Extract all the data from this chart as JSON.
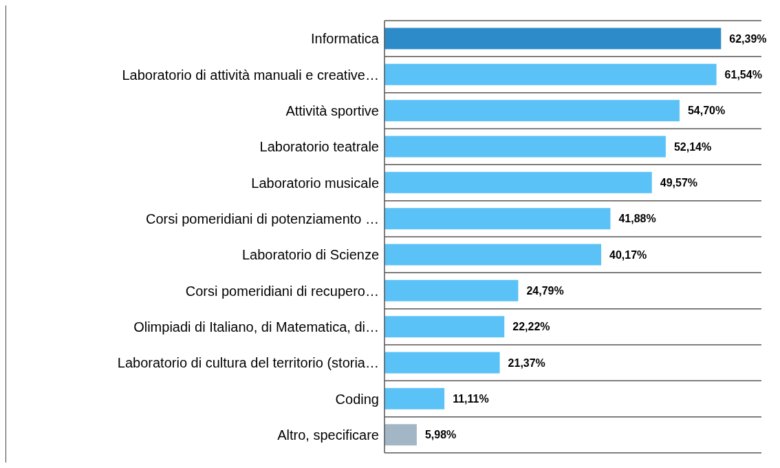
{
  "chart_data": {
    "type": "bar",
    "orientation": "horizontal",
    "categories": [
      "Informatica",
      "Laboratorio di attività manuali e creative…",
      "Attività sportive",
      "Laboratorio teatrale",
      "Laboratorio musicale",
      "Corsi pomeridiani di potenziamento …",
      "Laboratorio di Scienze",
      "Corsi pomeridiani di recupero…",
      "Olimpiadi di Italiano, di Matematica, di…",
      "Laboratorio di cultura del territorio (storia…",
      "Coding",
      "Altro, specificare"
    ],
    "values": [
      62.39,
      61.54,
      54.7,
      52.14,
      49.57,
      41.88,
      40.17,
      24.79,
      22.22,
      21.37,
      11.11,
      5.98
    ],
    "colors": [
      "#2e8bc9",
      "#5bc2f7",
      "#5bc2f7",
      "#5bc2f7",
      "#5bc2f7",
      "#5bc2f7",
      "#5bc2f7",
      "#5bc2f7",
      "#5bc2f7",
      "#5bc2f7",
      "#5bc2f7",
      "#a2b6c6"
    ],
    "value_labels": [
      "62,39%",
      "61,54%",
      "54,70%",
      "52,14%",
      "49,57%",
      "41,88%",
      "40,17%",
      "24,79%",
      "22,22%",
      "21,37%",
      "11,11%",
      "5,98%"
    ],
    "grid": "y"
  }
}
